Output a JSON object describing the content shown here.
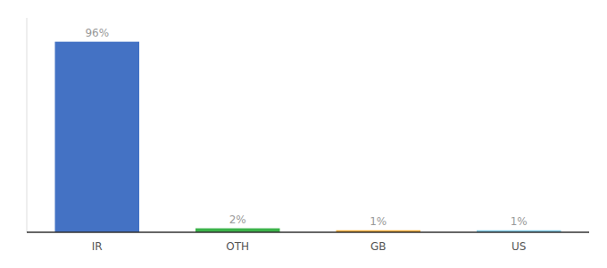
{
  "chart_data": {
    "type": "bar",
    "categories": [
      "IR",
      "OTH",
      "GB",
      "US"
    ],
    "values": [
      96,
      2,
      1,
      1
    ],
    "value_labels": [
      "96%",
      "2%",
      "1%",
      "1%"
    ],
    "colors": [
      "#4472c4",
      "#3cb34a",
      "#f0a830",
      "#7ec8e3"
    ],
    "ylim": [
      0,
      108
    ],
    "data_labels": true,
    "tick_labels": "x",
    "grid": false
  }
}
